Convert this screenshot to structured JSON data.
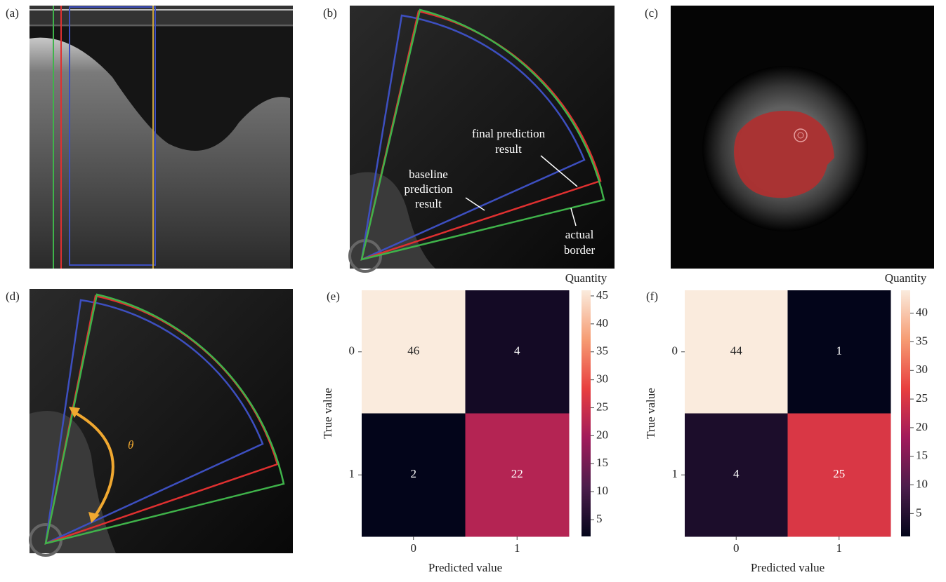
{
  "image_panels": [
    {
      "label": "(a)"
    },
    {
      "label": "(b)",
      "annotations": [
        [
          "final prediction",
          "result"
        ],
        [
          "baseline",
          "prediction",
          "result"
        ],
        [
          "actual",
          "border"
        ]
      ]
    },
    {
      "label": "(c)"
    },
    {
      "label": "(d)",
      "annotations": [
        [
          "θ"
        ]
      ]
    }
  ],
  "chart_data": [
    {
      "type": "heatmap",
      "panel_label": "(e)",
      "x_label": "Predicted value",
      "y_label": "True value",
      "x_categories": [
        "0",
        "1"
      ],
      "y_categories": [
        "0",
        "1"
      ],
      "values": [
        [
          46,
          4
        ],
        [
          2,
          22
        ]
      ],
      "colorbar_title": "Quantity",
      "clim": [
        2,
        46
      ],
      "cticks": [
        5,
        10,
        15,
        20,
        25,
        30,
        35,
        40,
        45
      ],
      "colormap": [
        "#03051a",
        "#4c1d4b",
        "#a11a5b",
        "#e83f3f",
        "#f69c73",
        "#faebdd"
      ]
    },
    {
      "type": "heatmap",
      "panel_label": "(f)",
      "x_label": "Predicted value",
      "y_label": "True value",
      "x_categories": [
        "0",
        "1"
      ],
      "y_categories": [
        "0",
        "1"
      ],
      "values": [
        [
          44,
          1
        ],
        [
          4,
          25
        ]
      ],
      "colorbar_title": "Quantity",
      "clim": [
        1,
        44
      ],
      "cticks": [
        5,
        10,
        15,
        20,
        25,
        30,
        35,
        40
      ],
      "colormap": [
        "#03051a",
        "#4c1d4b",
        "#a11a5b",
        "#e83f3f",
        "#f69c73",
        "#faebdd"
      ]
    }
  ]
}
